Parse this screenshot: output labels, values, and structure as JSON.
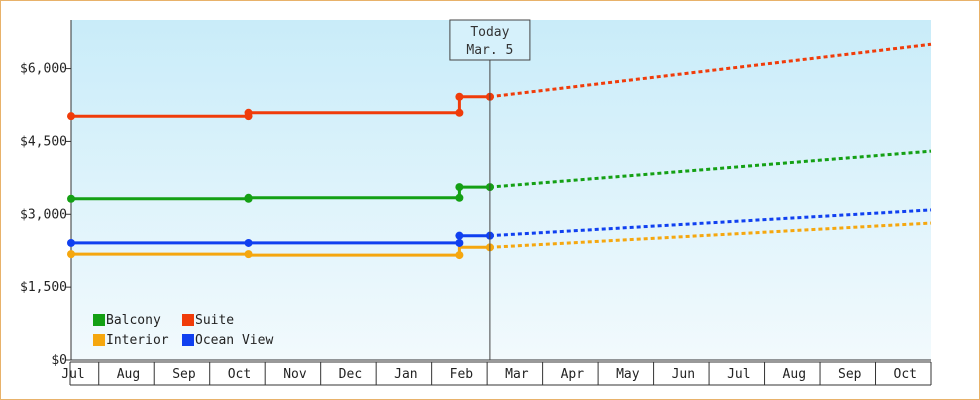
{
  "chart_data": {
    "type": "line",
    "y_ticks": [
      "$0",
      "$1,500",
      "$3,000",
      "$4,500",
      "$6,000"
    ],
    "y_tick_values": [
      0,
      1500,
      3000,
      4500,
      6000
    ],
    "ylim": [
      0,
      7000
    ],
    "x_month_labels": [
      "Jul",
      "Aug",
      "Sep",
      "Oct",
      "Nov",
      "Dec",
      "Jan",
      "Feb",
      "Mar",
      "Apr",
      "May",
      "Jun",
      "Jul",
      "Aug",
      "Sep",
      "Oct"
    ],
    "xlim_month_index": [
      0,
      15.5
    ],
    "today": {
      "line1": "Today",
      "line2": "Mar. 5",
      "month_index": 7.55
    },
    "legend": {
      "placement": "bottom-left"
    },
    "series": [
      {
        "name": "Balcony",
        "color": "#14a014",
        "history": [
          [
            0,
            3320
          ],
          [
            3.2,
            3320
          ],
          [
            3.2,
            3340
          ],
          [
            7.0,
            3340
          ],
          [
            7.0,
            3560
          ],
          [
            7.55,
            3560
          ]
        ],
        "history_markers": [
          [
            0,
            3320
          ],
          [
            3.2,
            3320
          ],
          [
            3.2,
            3340
          ],
          [
            7.0,
            3340
          ],
          [
            7.0,
            3560
          ],
          [
            7.55,
            3560
          ]
        ],
        "forecast": [
          [
            7.55,
            3560
          ],
          [
            15.5,
            4300
          ]
        ]
      },
      {
        "name": "Suite",
        "color": "#f03c0a",
        "history": [
          [
            0,
            5020
          ],
          [
            3.2,
            5020
          ],
          [
            3.2,
            5090
          ],
          [
            7.0,
            5090
          ],
          [
            7.0,
            5420
          ],
          [
            7.55,
            5420
          ]
        ],
        "history_markers": [
          [
            0,
            5020
          ],
          [
            3.2,
            5020
          ],
          [
            3.2,
            5090
          ],
          [
            7.0,
            5090
          ],
          [
            7.0,
            5420
          ],
          [
            7.55,
            5420
          ]
        ],
        "forecast": [
          [
            7.55,
            5420
          ],
          [
            15.5,
            6500
          ]
        ]
      },
      {
        "name": "Interior",
        "color": "#f5a70f",
        "history": [
          [
            0,
            2180
          ],
          [
            3.2,
            2180
          ],
          [
            3.2,
            2160
          ],
          [
            7.0,
            2160
          ],
          [
            7.0,
            2320
          ],
          [
            7.55,
            2320
          ]
        ],
        "history_markers": [
          [
            0,
            2180
          ],
          [
            3.2,
            2180
          ],
          [
            7.0,
            2160
          ],
          [
            7.55,
            2320
          ]
        ],
        "forecast": [
          [
            7.55,
            2320
          ],
          [
            15.5,
            2820
          ]
        ]
      },
      {
        "name": "Ocean View",
        "color": "#1040f0",
        "history": [
          [
            0,
            2410
          ],
          [
            3.2,
            2410
          ],
          [
            7.0,
            2410
          ],
          [
            7.0,
            2560
          ],
          [
            7.55,
            2560
          ]
        ],
        "history_markers": [
          [
            0,
            2410
          ],
          [
            3.2,
            2410
          ],
          [
            7.0,
            2410
          ],
          [
            7.0,
            2560
          ],
          [
            7.55,
            2560
          ]
        ],
        "forecast": [
          [
            7.55,
            2560
          ],
          [
            15.5,
            3090
          ]
        ]
      }
    ]
  }
}
